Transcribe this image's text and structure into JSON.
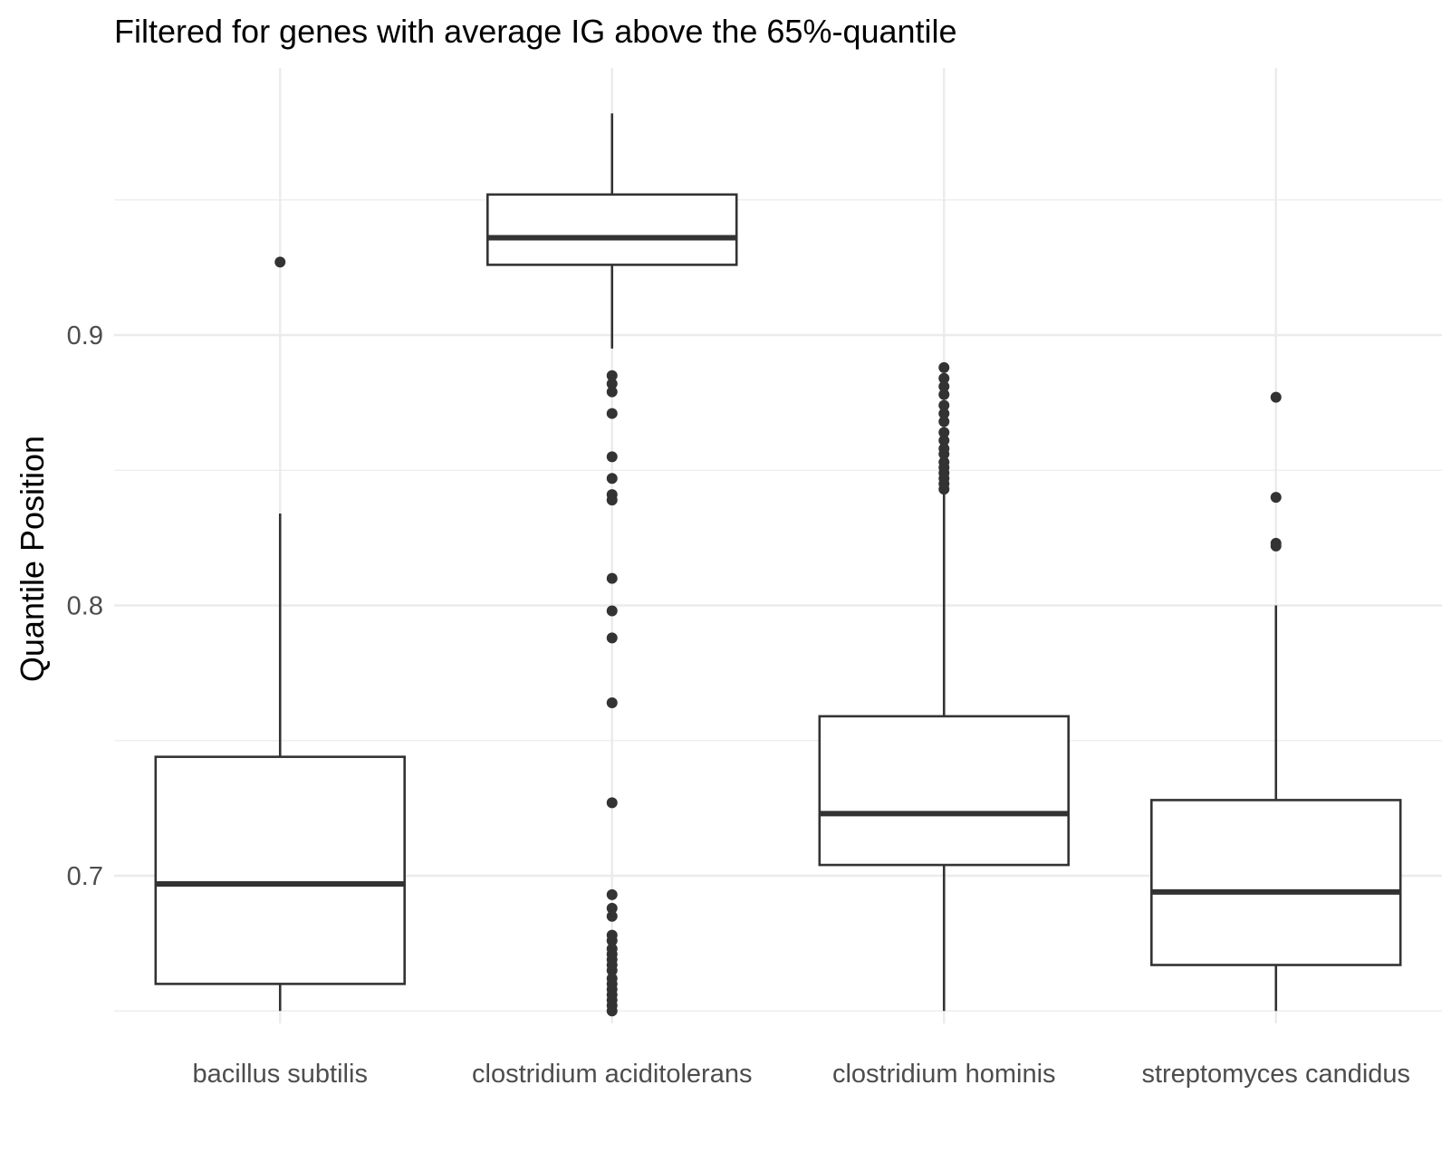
{
  "chart_data": {
    "type": "boxplot",
    "title": "Filtered for genes with average IG above the 65%-quantile",
    "xlabel": "",
    "ylabel": "Quantile Position",
    "ylim": [
      0.634,
      0.985
    ],
    "yticks": [
      0.7,
      0.8,
      0.9
    ],
    "ytick_labels": [
      "0.7",
      "0.8",
      "0.9"
    ],
    "grid": true,
    "legend": "none",
    "categories": [
      "bacillus subtilis",
      "clostridium aciditolerans",
      "clostridium hominis",
      "streptomyces candidus"
    ],
    "boxes": [
      {
        "category": "bacillus subtilis",
        "whisker_low": 0.65,
        "q1": 0.66,
        "median": 0.697,
        "q3": 0.744,
        "whisker_high": 0.834,
        "outliers": [
          0.927
        ]
      },
      {
        "category": "clostridium aciditolerans",
        "whisker_low": 0.895,
        "q1": 0.926,
        "median": 0.936,
        "q3": 0.952,
        "whisker_high": 0.982,
        "outliers": [
          0.885,
          0.882,
          0.879,
          0.871,
          0.855,
          0.847,
          0.841,
          0.839,
          0.81,
          0.798,
          0.788,
          0.764,
          0.727,
          0.693,
          0.688,
          0.685,
          0.678,
          0.676,
          0.673,
          0.671,
          0.669,
          0.667,
          0.665,
          0.662,
          0.66,
          0.658,
          0.656,
          0.654,
          0.652,
          0.65
        ]
      },
      {
        "category": "clostridium hominis",
        "whisker_low": 0.65,
        "q1": 0.704,
        "median": 0.723,
        "q3": 0.759,
        "whisker_high": 0.843,
        "outliers": [
          0.888,
          0.884,
          0.881,
          0.878,
          0.874,
          0.871,
          0.868,
          0.864,
          0.861,
          0.858,
          0.856,
          0.853,
          0.851,
          0.849,
          0.847,
          0.845,
          0.843
        ]
      },
      {
        "category": "streptomyces candidus",
        "whisker_low": 0.65,
        "q1": 0.667,
        "median": 0.694,
        "q3": 0.728,
        "whisker_high": 0.8,
        "outliers": [
          0.877,
          0.84,
          0.823,
          0.822
        ]
      }
    ],
    "colors": {
      "box_stroke": "#333333",
      "box_fill": "#ffffff",
      "grid": "#ebebeb",
      "tick_text": "#4d4d4d"
    }
  }
}
